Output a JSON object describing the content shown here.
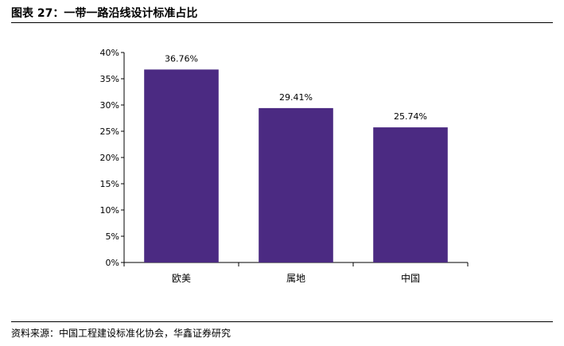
{
  "figure": {
    "title": "图表 27：一带一路沿线设计标准占比",
    "source": "资料来源：中国工程建设标准化协会，华鑫证券研究"
  },
  "chart_data": {
    "type": "bar",
    "categories": [
      "欧美",
      "属地",
      "中国"
    ],
    "values": [
      36.76,
      29.41,
      25.74
    ],
    "data_labels": [
      "36.76%",
      "29.41%",
      "25.74%"
    ],
    "y_ticks": [
      "0%",
      "5%",
      "10%",
      "15%",
      "20%",
      "25%",
      "30%",
      "35%",
      "40%"
    ],
    "ylim": [
      0,
      40
    ],
    "bar_color": "#4B2A82",
    "grid": false,
    "title": "",
    "xlabel": "",
    "ylabel": ""
  }
}
